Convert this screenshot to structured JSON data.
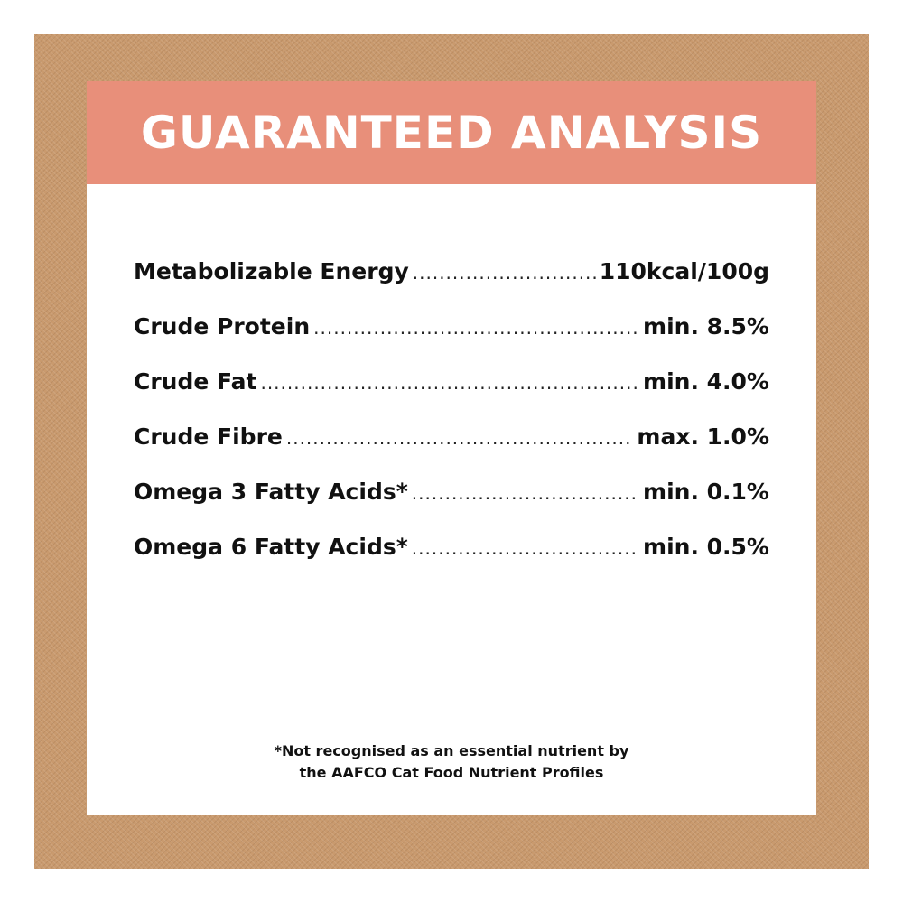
{
  "title": "GUARANTEED ANALYSIS",
  "colors": {
    "banner": "#e88f7a",
    "background": "#c99a6e",
    "card": "#ffffff"
  },
  "rows": [
    {
      "label": "Metabolizable Energy",
      "value": "110kcal/100g"
    },
    {
      "label": "Crude Protein",
      "value": "min. 8.5%"
    },
    {
      "label": "Crude Fat",
      "value": "min. 4.0%"
    },
    {
      "label": "Crude Fibre",
      "value": "max. 1.0%"
    },
    {
      "label": "Omega 3 Fatty Acids*",
      "value": "min. 0.1%"
    },
    {
      "label": "Omega 6 Fatty Acids*",
      "value": "min. 0.5%"
    }
  ],
  "footnote": {
    "line1": "*Not recognised as an essential nutrient by",
    "line2": "the AAFCO Cat Food Nutrient Profiles"
  }
}
